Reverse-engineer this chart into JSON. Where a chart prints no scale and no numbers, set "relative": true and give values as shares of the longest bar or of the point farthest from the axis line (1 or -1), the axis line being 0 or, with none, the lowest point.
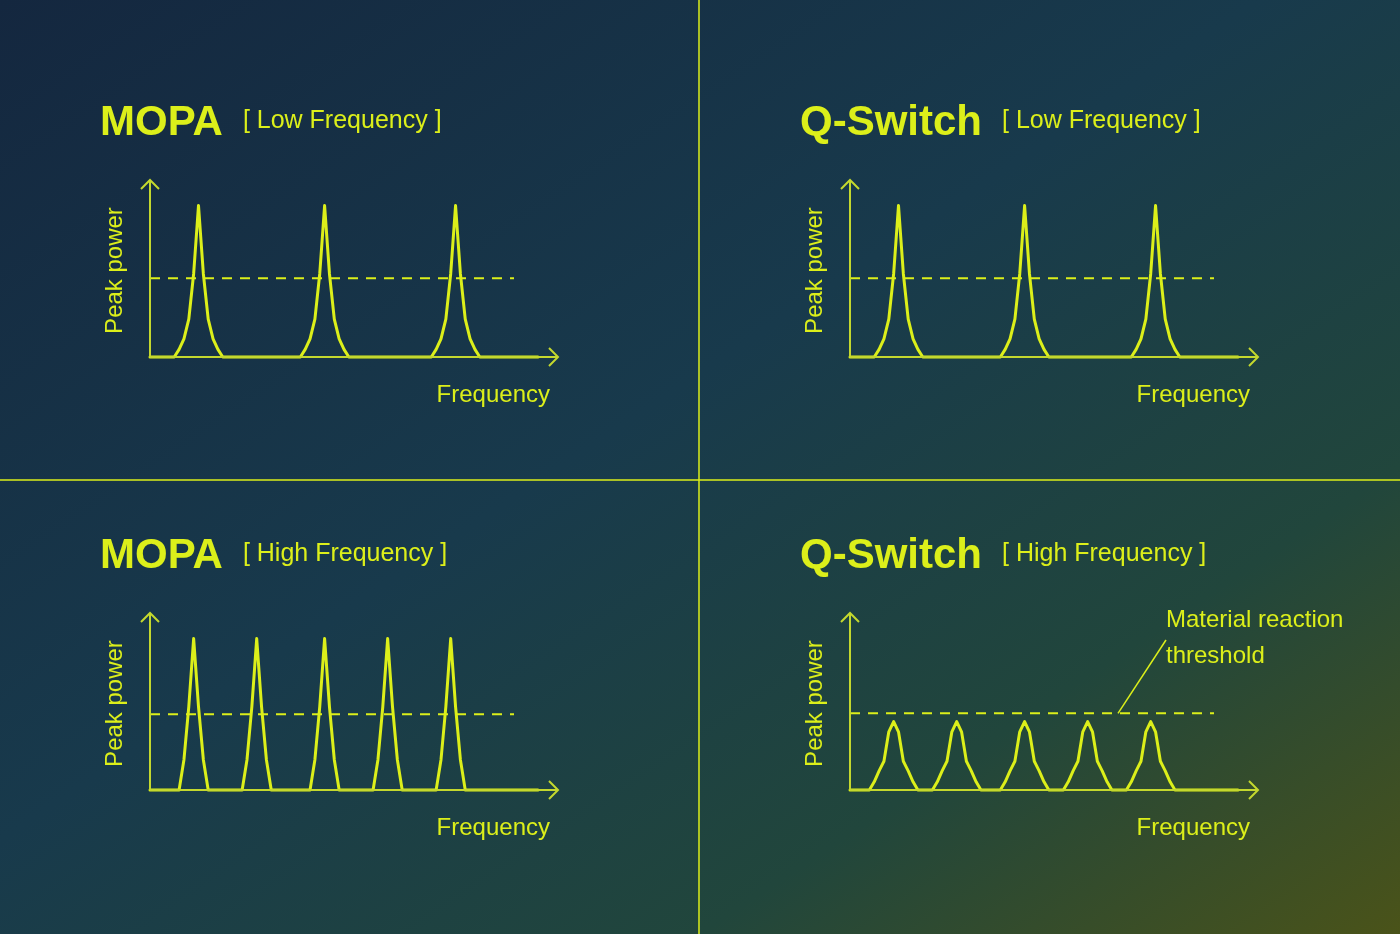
{
  "chart_data": [
    {
      "type": "line",
      "title": "MOPA",
      "subtitle": "[ Low Frequency ]",
      "xlabel": "Frequency",
      "ylabel": "Peak power",
      "relative": true,
      "categories": [
        null,
        null,
        null,
        null,
        null,
        null,
        null,
        null,
        null,
        null,
        null,
        null,
        null,
        null,
        null,
        null,
        null,
        null,
        null,
        null,
        null,
        null,
        null,
        null,
        null,
        null,
        null,
        null,
        null,
        null,
        null,
        null,
        null,
        null,
        null,
        null,
        null,
        null,
        null,
        null,
        null,
        null,
        null,
        null,
        null,
        null,
        null,
        null,
        null,
        null,
        null,
        null,
        null,
        null,
        null,
        null,
        null,
        null,
        null,
        null,
        null,
        null,
        null,
        null,
        null,
        null,
        null,
        null,
        null,
        null,
        null,
        null,
        null,
        null,
        null,
        null,
        null,
        null,
        null,
        null,
        null
      ],
      "series": [
        {
          "color": "#dcef1a",
          "values": [
            0,
            0,
            0,
            0,
            0,
            0,
            0.05,
            0.12,
            0.25,
            0.55,
            1,
            0.55,
            0.25,
            0.12,
            0.05,
            0,
            0,
            0,
            0,
            0,
            0,
            0,
            0,
            0,
            0,
            0,
            0,
            0,
            0,
            0,
            0,
            0,
            0.05,
            0.12,
            0.25,
            0.55,
            1,
            0.55,
            0.25,
            0.12,
            0.05,
            0,
            0,
            0,
            0,
            0,
            0,
            0,
            0,
            0,
            0,
            0,
            0,
            0,
            0,
            0,
            0,
            0,
            0,
            0.05,
            0.12,
            0.25,
            0.55,
            1,
            0.55,
            0.25,
            0.12,
            0.05,
            0,
            0,
            0,
            0,
            0,
            0,
            0,
            0,
            0,
            0,
            0,
            0,
            0
          ]
        }
      ],
      "ref_lines": [
        {
          "axis": "y",
          "value": 0.52,
          "color": "#dcef1a",
          "line_style": "dashed"
        }
      ]
    },
    {
      "type": "line",
      "title": "Q-Switch",
      "subtitle": "[ Low Frequency ]",
      "xlabel": "Frequency",
      "ylabel": "Peak power",
      "relative": true,
      "categories": [
        null,
        null,
        null,
        null,
        null,
        null,
        null,
        null,
        null,
        null,
        null,
        null,
        null,
        null,
        null,
        null,
        null,
        null,
        null,
        null,
        null,
        null,
        null,
        null,
        null,
        null,
        null,
        null,
        null,
        null,
        null,
        null,
        null,
        null,
        null,
        null,
        null,
        null,
        null,
        null,
        null,
        null,
        null,
        null,
        null,
        null,
        null,
        null,
        null,
        null,
        null,
        null,
        null,
        null,
        null,
        null,
        null,
        null,
        null,
        null,
        null,
        null,
        null,
        null,
        null,
        null,
        null,
        null,
        null,
        null,
        null,
        null,
        null,
        null,
        null,
        null,
        null,
        null,
        null,
        null,
        null
      ],
      "series": [
        {
          "color": "#dcef1a",
          "values": [
            0,
            0,
            0,
            0,
            0,
            0,
            0.05,
            0.12,
            0.25,
            0.55,
            1,
            0.55,
            0.25,
            0.12,
            0.05,
            0,
            0,
            0,
            0,
            0,
            0,
            0,
            0,
            0,
            0,
            0,
            0,
            0,
            0,
            0,
            0,
            0,
            0.05,
            0.12,
            0.25,
            0.55,
            1,
            0.55,
            0.25,
            0.12,
            0.05,
            0,
            0,
            0,
            0,
            0,
            0,
            0,
            0,
            0,
            0,
            0,
            0,
            0,
            0,
            0,
            0,
            0,
            0,
            0.05,
            0.12,
            0.25,
            0.55,
            1,
            0.55,
            0.25,
            0.12,
            0.05,
            0,
            0,
            0,
            0,
            0,
            0,
            0,
            0,
            0,
            0,
            0,
            0,
            0
          ]
        }
      ],
      "ref_lines": [
        {
          "axis": "y",
          "value": 0.52,
          "color": "#dcef1a",
          "line_style": "dashed"
        }
      ]
    },
    {
      "type": "line",
      "title": "MOPA",
      "subtitle": "[ High Frequency ]",
      "xlabel": "Frequency",
      "ylabel": "Peak power",
      "relative": true,
      "categories": [
        null,
        null,
        null,
        null,
        null,
        null,
        null,
        null,
        null,
        null,
        null,
        null,
        null,
        null,
        null,
        null,
        null,
        null,
        null,
        null,
        null,
        null,
        null,
        null,
        null,
        null,
        null,
        null,
        null,
        null,
        null,
        null,
        null,
        null,
        null,
        null,
        null,
        null,
        null,
        null,
        null,
        null,
        null,
        null,
        null,
        null,
        null,
        null,
        null,
        null,
        null,
        null,
        null,
        null,
        null,
        null,
        null,
        null,
        null,
        null,
        null,
        null,
        null,
        null,
        null,
        null,
        null,
        null,
        null,
        null,
        null,
        null,
        null,
        null,
        null,
        null,
        null,
        null,
        null,
        null,
        null
      ],
      "series": [
        {
          "color": "#dcef1a",
          "values": [
            0,
            0,
            0,
            0,
            0,
            0,
            0,
            0.2,
            0.55,
            1,
            0.55,
            0.2,
            0,
            0,
            0,
            0,
            0,
            0,
            0,
            0,
            0.2,
            0.55,
            1,
            0.55,
            0.2,
            0,
            0,
            0,
            0,
            0,
            0,
            0,
            0,
            0,
            0.2,
            0.55,
            1,
            0.55,
            0.2,
            0,
            0,
            0,
            0,
            0,
            0,
            0,
            0,
            0.2,
            0.55,
            1,
            0.55,
            0.2,
            0,
            0,
            0,
            0,
            0,
            0,
            0,
            0,
            0.2,
            0.55,
            1,
            0.55,
            0.2,
            0,
            0,
            0,
            0,
            0,
            0,
            0,
            0,
            0,
            0,
            0,
            0,
            0,
            0,
            0,
            0
          ]
        }
      ],
      "ref_lines": [
        {
          "axis": "y",
          "value": 0.5,
          "color": "#dcef1a",
          "line_style": "dashed"
        }
      ]
    },
    {
      "type": "line",
      "title": "Q-Switch",
      "subtitle": "[ High Frequency ]",
      "xlabel": "Frequency",
      "ylabel": "Peak power",
      "relative": true,
      "categories": [
        null,
        null,
        null,
        null,
        null,
        null,
        null,
        null,
        null,
        null,
        null,
        null,
        null,
        null,
        null,
        null,
        null,
        null,
        null,
        null,
        null,
        null,
        null,
        null,
        null,
        null,
        null,
        null,
        null,
        null,
        null,
        null,
        null,
        null,
        null,
        null,
        null,
        null,
        null,
        null,
        null,
        null,
        null,
        null,
        null,
        null,
        null,
        null,
        null,
        null,
        null,
        null,
        null,
        null,
        null,
        null,
        null,
        null,
        null,
        null,
        null,
        null,
        null,
        null,
        null,
        null,
        null,
        null,
        null,
        null,
        null,
        null,
        null,
        null,
        null,
        null,
        null,
        null,
        null,
        null,
        null
      ],
      "series": [
        {
          "color": "#dcef1a",
          "values": [
            0,
            0,
            0,
            0,
            0,
            0.12,
            0.28,
            0.42,
            0.85,
            1,
            0.85,
            0.42,
            0.28,
            0.12,
            0,
            0,
            0,
            0,
            0.12,
            0.28,
            0.42,
            0.85,
            1,
            0.85,
            0.42,
            0.28,
            0.12,
            0,
            0,
            0,
            0,
            0,
            0.12,
            0.28,
            0.42,
            0.85,
            1,
            0.85,
            0.42,
            0.28,
            0.12,
            0,
            0,
            0,
            0,
            0.12,
            0.28,
            0.42,
            0.85,
            1,
            0.85,
            0.42,
            0.28,
            0.12,
            0,
            0,
            0,
            0,
            0.12,
            0.28,
            0.42,
            0.85,
            1,
            0.85,
            0.42,
            0.28,
            0.12,
            0,
            0,
            0,
            0,
            0,
            0,
            0,
            0,
            0,
            0,
            0,
            0,
            0,
            0
          ]
        }
      ],
      "ref_lines": [
        {
          "axis": "y",
          "value": 1.12,
          "color": "#dcef1a",
          "line_style": "dashed",
          "label": "Material reaction threshold"
        }
      ]
    }
  ]
}
